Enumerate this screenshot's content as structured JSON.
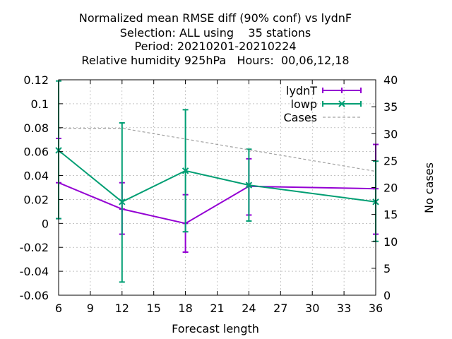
{
  "chart_data": {
    "type": "line",
    "title_lines": [
      "Normalized mean RMSE diff (90% conf) vs lydnF",
      "Selection: ALL using    35 stations",
      "Period: 20210201-20210224",
      "Relative humidity 925hPa   Hours:  00,06,12,18"
    ],
    "xlabel": "Forecast length",
    "ylabel": "",
    "y2label": "No cases",
    "xlim": [
      6,
      36
    ],
    "ylim": [
      -0.06,
      0.12
    ],
    "y2lim": [
      0,
      40
    ],
    "x_ticks": [
      6,
      9,
      12,
      15,
      18,
      21,
      24,
      27,
      30,
      33,
      36
    ],
    "y_ticks": [
      "-0.06",
      "-0.04",
      "-0.02",
      "0",
      "0.02",
      "0.04",
      "0.06",
      "0.08",
      "0.1",
      "0.12"
    ],
    "y2_ticks": [
      "0",
      "5",
      "10",
      "15",
      "20",
      "25",
      "30",
      "35",
      "40"
    ],
    "grid": true,
    "legend_position": "top-right",
    "series": [
      {
        "name": "lydnT",
        "color": "#9400d3",
        "marker": "plus",
        "x": [
          6,
          12,
          18,
          24,
          36
        ],
        "y": [
          0.034,
          0.012,
          0.0,
          0.031,
          0.029
        ],
        "err_low": [
          0.004,
          -0.009,
          -0.024,
          0.007,
          -0.009
        ],
        "err_high": [
          0.071,
          0.034,
          0.024,
          0.054,
          0.066
        ]
      },
      {
        "name": "lowp",
        "color": "#009e73",
        "marker": "cross",
        "x": [
          6,
          12,
          18,
          24,
          36
        ],
        "y": [
          0.061,
          0.018,
          0.044,
          0.032,
          0.018
        ],
        "err_low": [
          0.004,
          -0.049,
          -0.007,
          0.002,
          -0.015
        ],
        "err_high": [
          0.119,
          0.084,
          0.095,
          0.062,
          0.052
        ]
      },
      {
        "name": "Cases",
        "color": "#a0a0a0",
        "dashed": true,
        "axis": "y2",
        "x": [
          6,
          12,
          18,
          24,
          30,
          36
        ],
        "y": [
          31,
          31,
          29,
          27,
          25,
          23
        ]
      }
    ]
  }
}
